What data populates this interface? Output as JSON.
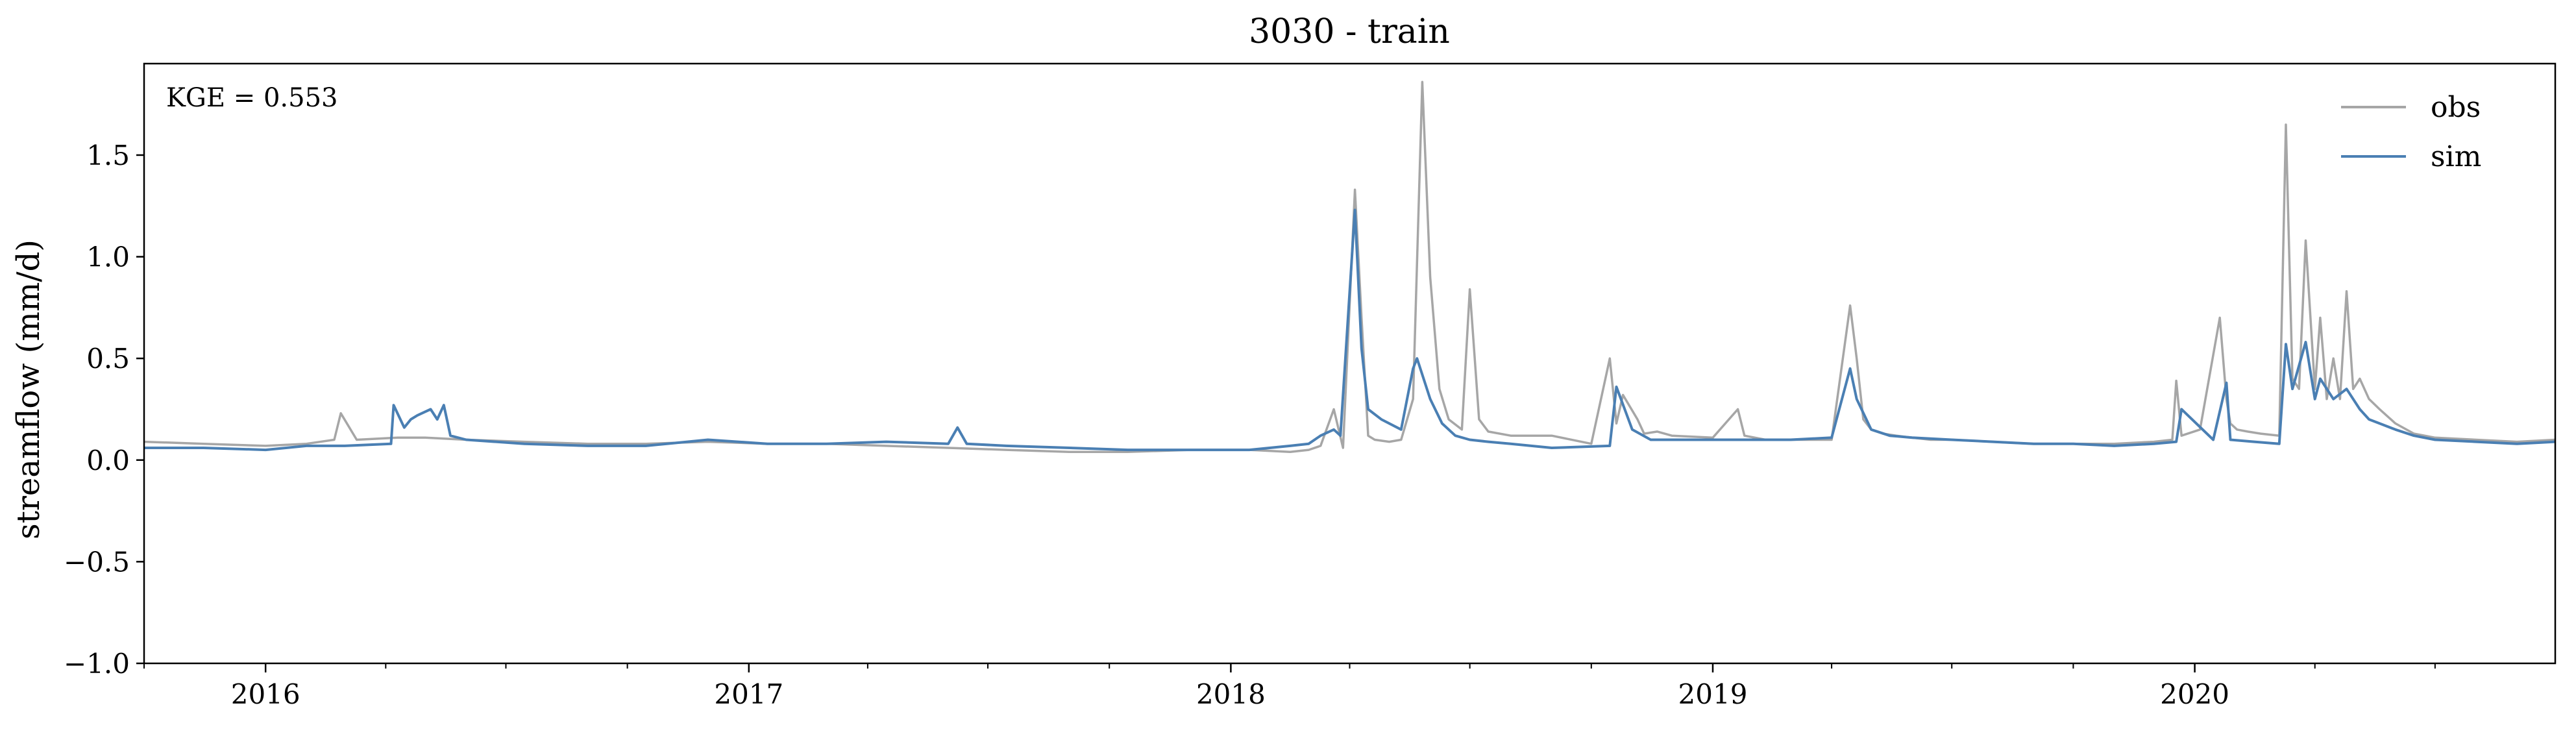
{
  "chart_data": {
    "type": "line",
    "title": "3030 - train",
    "xlabel": "",
    "ylabel": "streamflow (mm/d)",
    "annotation": "KGE = 0.553",
    "legend_position": "top-right",
    "grid": false,
    "xlim": [
      "2015-10-01",
      "2020-09-30"
    ],
    "ylim": [
      -1.0,
      1.95
    ],
    "yticks": [
      -1.0,
      -0.5,
      0.0,
      0.5,
      1.0,
      1.5
    ],
    "ytick_labels": [
      "−1.0",
      "−0.5",
      "0.0",
      "0.5",
      "1.0",
      "1.5"
    ],
    "xticks": [
      "2016-01-01",
      "2017-01-01",
      "2018-01-01",
      "2019-01-01",
      "2020-01-01"
    ],
    "xtick_labels": [
      "2016",
      "2017",
      "2018",
      "2019",
      "2020"
    ],
    "series": [
      {
        "name": "obs",
        "color": "#a6a6a6",
        "x": [
          "2015-10-01",
          "2015-11-15",
          "2016-01-01",
          "2016-02-01",
          "2016-02-22",
          "2016-02-27",
          "2016-03-10",
          "2016-04-10",
          "2016-05-01",
          "2016-06-01",
          "2016-07-15",
          "2016-09-01",
          "2016-10-15",
          "2016-12-01",
          "2017-01-15",
          "2017-03-01",
          "2017-04-15",
          "2017-06-01",
          "2017-07-15",
          "2017-09-01",
          "2017-10-15",
          "2017-12-01",
          "2018-01-15",
          "2018-02-15",
          "2018-03-01",
          "2018-03-10",
          "2018-03-20",
          "2018-03-27",
          "2018-04-05",
          "2018-04-10",
          "2018-04-15",
          "2018-04-20",
          "2018-05-01",
          "2018-05-10",
          "2018-05-19",
          "2018-05-26",
          "2018-06-01",
          "2018-06-08",
          "2018-06-15",
          "2018-06-25",
          "2018-07-01",
          "2018-07-08",
          "2018-07-15",
          "2018-08-01",
          "2018-09-01",
          "2018-10-01",
          "2018-10-15",
          "2018-10-20",
          "2018-10-25",
          "2018-11-05",
          "2018-11-10",
          "2018-11-20",
          "2018-12-01",
          "2019-01-01",
          "2019-01-20",
          "2019-01-25",
          "2019-02-10",
          "2019-03-01",
          "2019-04-01",
          "2019-04-15",
          "2019-04-20",
          "2019-04-25",
          "2019-05-01",
          "2019-05-10",
          "2019-05-20",
          "2019-06-01",
          "2019-06-15",
          "2019-07-01",
          "2019-08-01",
          "2019-09-01",
          "2019-10-01",
          "2019-11-01",
          "2019-12-01",
          "2019-12-15",
          "2019-12-18",
          "2019-12-22",
          "2020-01-05",
          "2020-01-20",
          "2020-01-25",
          "2020-01-28",
          "2020-02-02",
          "2020-02-10",
          "2020-02-20",
          "2020-03-05",
          "2020-03-10",
          "2020-03-15",
          "2020-03-20",
          "2020-03-25",
          "2020-04-01",
          "2020-04-05",
          "2020-04-10",
          "2020-04-15",
          "2020-04-20",
          "2020-04-25",
          "2020-04-30",
          "2020-05-05",
          "2020-05-12",
          "2020-05-20",
          "2020-06-01",
          "2020-06-15",
          "2020-07-01",
          "2020-08-01",
          "2020-09-01",
          "2020-09-30"
        ],
        "y": [
          0.09,
          0.08,
          0.07,
          0.08,
          0.1,
          0.23,
          0.1,
          0.11,
          0.11,
          0.1,
          0.09,
          0.08,
          0.08,
          0.09,
          0.08,
          0.08,
          0.07,
          0.06,
          0.05,
          0.04,
          0.04,
          0.05,
          0.05,
          0.04,
          0.05,
          0.07,
          0.25,
          0.06,
          1.33,
          0.7,
          0.12,
          0.1,
          0.09,
          0.1,
          0.3,
          1.86,
          0.9,
          0.35,
          0.2,
          0.15,
          0.84,
          0.2,
          0.14,
          0.12,
          0.12,
          0.08,
          0.5,
          0.18,
          0.32,
          0.2,
          0.13,
          0.14,
          0.12,
          0.11,
          0.25,
          0.12,
          0.1,
          0.1,
          0.1,
          0.76,
          0.5,
          0.2,
          0.15,
          0.13,
          0.12,
          0.11,
          0.1,
          0.1,
          0.09,
          0.08,
          0.08,
          0.08,
          0.09,
          0.1,
          0.39,
          0.12,
          0.15,
          0.7,
          0.3,
          0.18,
          0.15,
          0.14,
          0.13,
          0.12,
          1.65,
          0.4,
          0.35,
          1.08,
          0.35,
          0.7,
          0.3,
          0.5,
          0.3,
          0.83,
          0.35,
          0.4,
          0.3,
          0.25,
          0.18,
          0.13,
          0.11,
          0.1,
          0.09,
          0.1
        ]
      },
      {
        "name": "sim",
        "color": "#4a7fb3",
        "x": [
          "2015-10-01",
          "2015-11-15",
          "2016-01-01",
          "2016-02-01",
          "2016-03-01",
          "2016-04-05",
          "2016-04-07",
          "2016-04-15",
          "2016-04-20",
          "2016-04-25",
          "2016-05-05",
          "2016-05-10",
          "2016-05-15",
          "2016-05-20",
          "2016-06-01",
          "2016-07-15",
          "2016-09-01",
          "2016-10-15",
          "2016-12-01",
          "2017-01-15",
          "2017-03-01",
          "2017-04-15",
          "2017-06-01",
          "2017-06-08",
          "2017-06-15",
          "2017-07-15",
          "2017-09-01",
          "2017-10-15",
          "2017-12-01",
          "2018-01-15",
          "2018-02-15",
          "2018-03-01",
          "2018-03-10",
          "2018-03-20",
          "2018-03-25",
          "2018-04-05",
          "2018-04-10",
          "2018-04-15",
          "2018-04-25",
          "2018-05-10",
          "2018-05-19",
          "2018-05-22",
          "2018-06-01",
          "2018-06-10",
          "2018-06-20",
          "2018-07-01",
          "2018-07-15",
          "2018-08-01",
          "2018-09-01",
          "2018-10-15",
          "2018-10-20",
          "2018-11-01",
          "2018-11-15",
          "2018-12-01",
          "2019-01-01",
          "2019-02-01",
          "2019-03-01",
          "2019-04-01",
          "2019-04-15",
          "2019-04-20",
          "2019-05-01",
          "2019-05-15",
          "2019-06-01",
          "2019-07-01",
          "2019-08-01",
          "2019-09-01",
          "2019-10-01",
          "2019-11-01",
          "2019-12-01",
          "2019-12-18",
          "2019-12-22",
          "2020-01-15",
          "2020-01-25",
          "2020-01-28",
          "2020-02-15",
          "2020-03-05",
          "2020-03-10",
          "2020-03-15",
          "2020-03-25",
          "2020-04-01",
          "2020-04-05",
          "2020-04-15",
          "2020-04-25",
          "2020-05-05",
          "2020-05-12",
          "2020-05-20",
          "2020-06-01",
          "2020-06-15",
          "2020-07-01",
          "2020-08-01",
          "2020-09-01",
          "2020-09-30"
        ],
        "y": [
          0.06,
          0.06,
          0.05,
          0.07,
          0.07,
          0.08,
          0.27,
          0.16,
          0.2,
          0.22,
          0.25,
          0.2,
          0.27,
          0.12,
          0.1,
          0.08,
          0.07,
          0.07,
          0.1,
          0.08,
          0.08,
          0.09,
          0.08,
          0.16,
          0.08,
          0.07,
          0.06,
          0.05,
          0.05,
          0.05,
          0.07,
          0.08,
          0.12,
          0.15,
          0.12,
          1.23,
          0.55,
          0.25,
          0.2,
          0.15,
          0.45,
          0.5,
          0.3,
          0.18,
          0.12,
          0.1,
          0.09,
          0.08,
          0.06,
          0.07,
          0.36,
          0.15,
          0.1,
          0.1,
          0.1,
          0.1,
          0.1,
          0.11,
          0.45,
          0.3,
          0.15,
          0.12,
          0.11,
          0.1,
          0.09,
          0.08,
          0.08,
          0.07,
          0.08,
          0.09,
          0.25,
          0.1,
          0.38,
          0.1,
          0.09,
          0.08,
          0.57,
          0.35,
          0.58,
          0.3,
          0.4,
          0.3,
          0.35,
          0.25,
          0.2,
          0.18,
          0.15,
          0.12,
          0.1,
          0.09,
          0.08,
          0.09
        ]
      }
    ]
  }
}
